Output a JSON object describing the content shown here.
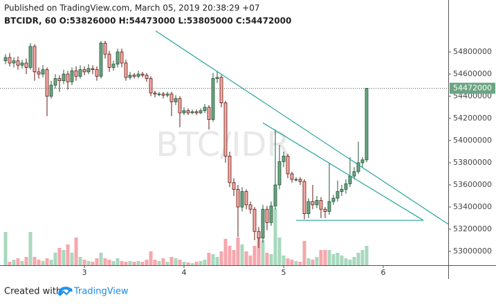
{
  "chart_data": {
    "type": "candlestick",
    "title": "Published on TradingView.com, March 05, 2019 20:38:29 +07",
    "symbol": "BTCIDR, 60",
    "ohlc_labels": [
      "O:",
      "H:",
      "L:",
      "C:"
    ],
    "watermark": "BTC/IDR",
    "footer": {
      "text": "Created with",
      "brand": "TradingView"
    },
    "x": [
      2.2083,
      2.25,
      2.2917,
      2.3333,
      2.375,
      2.4167,
      2.4583,
      2.5,
      2.5417,
      2.5833,
      2.625,
      2.6667,
      2.7083,
      2.75,
      2.7917,
      2.8333,
      2.875,
      2.9167,
      2.9583,
      3,
      3.0417,
      3.0833,
      3.125,
      3.1667,
      3.2083,
      3.25,
      3.2917,
      3.3333,
      3.375,
      3.4167,
      3.4583,
      3.5,
      3.5417,
      3.5833,
      3.625,
      3.6667,
      3.7083,
      3.75,
      3.7917,
      3.8333,
      3.875,
      3.9167,
      3.9583,
      4,
      4.0417,
      4.0833,
      4.125,
      4.1667,
      4.2083,
      4.25,
      4.2917,
      4.3333,
      4.375,
      4.4167,
      4.4583,
      4.5,
      4.5417,
      4.5833,
      4.625,
      4.6667,
      4.7083,
      4.75,
      4.7917,
      4.8333,
      4.875,
      4.9167,
      4.9583,
      5,
      5.0417,
      5.0833,
      5.125,
      5.1667,
      5.2083,
      5.25,
      5.2917,
      5.3333,
      5.375,
      5.4167,
      5.4583,
      5.5,
      5.5417,
      5.5833,
      5.625,
      5.6667,
      5.7083,
      5.75,
      5.7917,
      5.8333
    ],
    "open": [
      54720000,
      54750000,
      54700000,
      54720000,
      54680000,
      54700000,
      54660000,
      54850000,
      54620000,
      54600000,
      54640000,
      54400000,
      54500000,
      54560000,
      54540000,
      54600000,
      54530000,
      54630000,
      54580000,
      54640000,
      54620000,
      54650000,
      54640000,
      54580000,
      54880000,
      54780000,
      54660000,
      54690000,
      54800000,
      54700000,
      54570000,
      54590000,
      54580000,
      54600000,
      54590000,
      54560000,
      54430000,
      54420000,
      54420000,
      54410000,
      54420000,
      54350000,
      54380000,
      54250000,
      54270000,
      54250000,
      54260000,
      54250000,
      54270000,
      54300000,
      54190000,
      54560000,
      54570000,
      54340000,
      53860000,
      53620000,
      53560000,
      53400000,
      53540000,
      53420000,
      53380000,
      53180000,
      53120000,
      53380000,
      53260000,
      53410000,
      53600000,
      53810000,
      53860000,
      53700000,
      53650000,
      53650000,
      53630000,
      53340000,
      53450000,
      53420000,
      53460000,
      53380000,
      53360000,
      53450000,
      53480000,
      53540000,
      53560000,
      53610000,
      53680000,
      53720000,
      53800000,
      53826000
    ],
    "high": [
      54780000,
      54790000,
      54750000,
      54760000,
      54730000,
      54740000,
      54880000,
      54870000,
      54660000,
      54680000,
      54660000,
      54540000,
      54600000,
      54590000,
      54640000,
      54630000,
      54660000,
      54670000,
      54680000,
      54670000,
      54690000,
      54680000,
      54670000,
      54900000,
      54900000,
      54810000,
      54720000,
      54830000,
      54830000,
      54730000,
      54620000,
      54610000,
      54630000,
      54620000,
      54610000,
      54580000,
      54450000,
      54440000,
      54440000,
      54440000,
      54440000,
      54410000,
      54400000,
      54300000,
      54290000,
      54280000,
      54280000,
      54290000,
      54330000,
      54320000,
      54610000,
      54630000,
      54590000,
      54360000,
      53900000,
      53660000,
      53600000,
      53580000,
      53560000,
      53450000,
      53400000,
      53220000,
      53420000,
      53410000,
      53450000,
      54100000,
      53960000,
      53900000,
      53880000,
      53720000,
      53670000,
      53670000,
      53650000,
      53480000,
      53600000,
      53500000,
      53490000,
      53400000,
      53800000,
      53510000,
      53640000,
      53600000,
      53650000,
      53850000,
      53760000,
      53990000,
      53850000,
      54473000
    ],
    "low": [
      54690000,
      54670000,
      54660000,
      54640000,
      54650000,
      54600000,
      54640000,
      54540000,
      54560000,
      54570000,
      54220000,
      54380000,
      54470000,
      54440000,
      54510000,
      54460000,
      54500000,
      54540000,
      54560000,
      54590000,
      54600000,
      54600000,
      54540000,
      54560000,
      54740000,
      54620000,
      54630000,
      54660000,
      54660000,
      54540000,
      54550000,
      54560000,
      54560000,
      54570000,
      54530000,
      54400000,
      54390000,
      54400000,
      54380000,
      54390000,
      54220000,
      54320000,
      54120000,
      54230000,
      54230000,
      54240000,
      54230000,
      54240000,
      54250000,
      54100000,
      54170000,
      54520000,
      54300000,
      53800000,
      53580000,
      53500000,
      53130000,
      53360000,
      53380000,
      53340000,
      53100000,
      53030000,
      53080000,
      53190000,
      53230000,
      53380000,
      53560000,
      53760000,
      53660000,
      53620000,
      53630000,
      53600000,
      53290000,
      53300000,
      53380000,
      53390000,
      53300000,
      53300000,
      53330000,
      53420000,
      53450000,
      53500000,
      53520000,
      53580000,
      53650000,
      53700000,
      53760000,
      53805000
    ],
    "close": [
      54750000,
      54700000,
      54720000,
      54680000,
      54700000,
      54660000,
      54850000,
      54620000,
      54600000,
      54640000,
      54400000,
      54500000,
      54560000,
      54540000,
      54600000,
      54530000,
      54630000,
      54580000,
      54640000,
      54620000,
      54650000,
      54640000,
      54580000,
      54880000,
      54780000,
      54660000,
      54690000,
      54800000,
      54700000,
      54570000,
      54590000,
      54580000,
      54600000,
      54590000,
      54560000,
      54430000,
      54420000,
      54420000,
      54410000,
      54420000,
      54350000,
      54380000,
      54250000,
      54270000,
      54250000,
      54260000,
      54250000,
      54270000,
      54300000,
      54190000,
      54560000,
      54570000,
      54340000,
      53860000,
      53620000,
      53560000,
      53400000,
      53540000,
      53420000,
      53380000,
      53180000,
      53120000,
      53380000,
      53260000,
      53410000,
      53600000,
      53810000,
      53860000,
      53700000,
      53650000,
      53650000,
      53630000,
      53340000,
      53450000,
      53420000,
      53460000,
      53380000,
      53360000,
      53450000,
      53480000,
      53540000,
      53560000,
      53610000,
      53680000,
      53720000,
      53800000,
      53826000,
      54472000
    ],
    "volume": [
      48,
      5,
      8,
      10,
      6,
      12,
      48,
      12,
      8,
      6,
      10,
      8,
      18,
      25,
      22,
      30,
      18,
      40,
      12,
      8,
      6,
      5,
      10,
      18,
      10,
      8,
      6,
      10,
      6,
      5,
      6,
      5,
      6,
      5,
      8,
      20,
      8,
      6,
      10,
      5,
      12,
      10,
      8,
      5,
      4,
      3,
      5,
      6,
      8,
      18,
      16,
      12,
      20,
      38,
      28,
      22,
      40,
      30,
      20,
      14,
      28,
      42,
      36,
      18,
      16,
      82,
      40,
      14,
      10,
      8,
      6,
      5,
      35,
      10,
      8,
      12,
      22,
      22,
      22,
      16,
      18,
      14,
      10,
      8,
      12,
      18,
      22,
      28
    ],
    "up_color": "#6ba583",
    "down_color": "#f7a9a3",
    "up_volume_color": "#a9d8be",
    "down_volume_color": "#f6a7ad",
    "trendline_color": "#26a69a",
    "trendlines": [
      {
        "x": [
          3.7153,
          6.653
        ],
        "y": [
          54990000,
          53245000
        ]
      },
      {
        "x": [
          4.7917,
          6.4028
        ],
        "y": [
          54160000,
          53280000
        ]
      },
      {
        "x": [
          5.125,
          6.4028
        ],
        "y": [
          53280000,
          53280000
        ]
      }
    ],
    "xlim": [
      2.1528,
      6.6528
    ],
    "xticks": [
      3,
      4,
      5,
      6
    ],
    "ylim": [
      52875000,
      55268750
    ],
    "yticks": [
      53000000,
      53200000,
      53400000,
      53600000,
      53800000,
      54000000,
      54200000,
      54400000,
      54600000,
      54800000
    ]
  }
}
